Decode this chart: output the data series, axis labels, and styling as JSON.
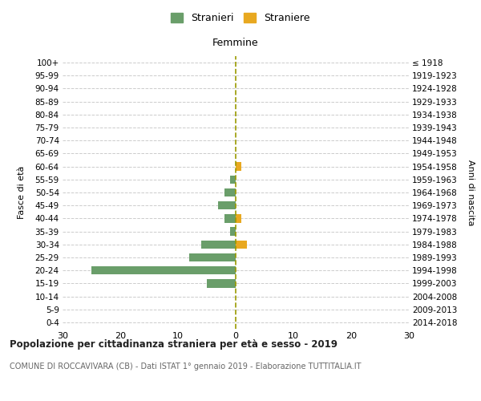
{
  "age_groups": [
    "0-4",
    "5-9",
    "10-14",
    "15-19",
    "20-24",
    "25-29",
    "30-34",
    "35-39",
    "40-44",
    "45-49",
    "50-54",
    "55-59",
    "60-64",
    "65-69",
    "70-74",
    "75-79",
    "80-84",
    "85-89",
    "90-94",
    "95-99",
    "100+"
  ],
  "birth_years": [
    "2014-2018",
    "2009-2013",
    "2004-2008",
    "1999-2003",
    "1994-1998",
    "1989-1993",
    "1984-1988",
    "1979-1983",
    "1974-1978",
    "1969-1973",
    "1964-1968",
    "1959-1963",
    "1954-1958",
    "1949-1953",
    "1944-1948",
    "1939-1943",
    "1934-1938",
    "1929-1933",
    "1924-1928",
    "1919-1923",
    "≤ 1918"
  ],
  "males_stranieri": [
    0,
    0,
    0,
    5,
    25,
    8,
    6,
    1,
    2,
    3,
    2,
    1,
    0,
    0,
    0,
    0,
    0,
    0,
    0,
    0,
    0
  ],
  "females_straniere": [
    0,
    0,
    0,
    0,
    0,
    0,
    2,
    0,
    1,
    0,
    0,
    0,
    1,
    0,
    0,
    0,
    0,
    0,
    0,
    0,
    0
  ],
  "color_males": "#6a9e6a",
  "color_females": "#e8a820",
  "xlim": 30,
  "xlabel_right": "Femmine",
  "ylabel_left": "Fasce di età",
  "ylabel_right": "Anni di nascita",
  "title": "Popolazione per cittadinanza straniera per età e sesso - 2019",
  "subtitle": "COMUNE DI ROCCAVIVARA (CB) - Dati ISTAT 1° gennaio 2019 - Elaborazione TUTTITALIA.IT",
  "legend_males": "Stranieri",
  "legend_females": "Straniere",
  "background_color": "#ffffff",
  "grid_color": "#cccccc",
  "center_line_color": "#999900"
}
